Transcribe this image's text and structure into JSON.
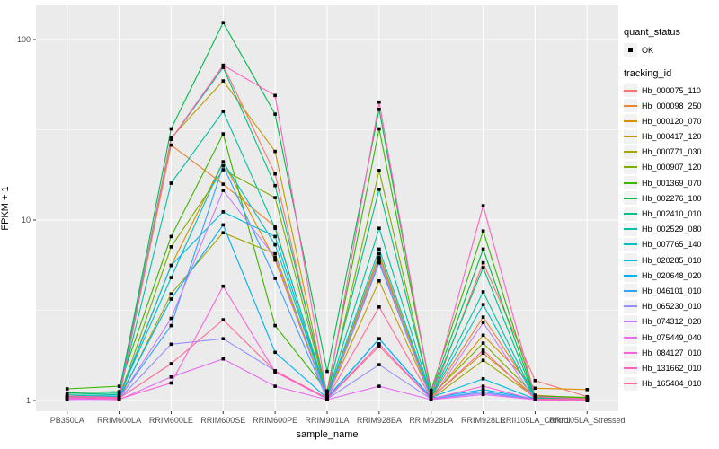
{
  "chart_data": {
    "type": "line",
    "xlabel": "sample_name",
    "ylabel": "FPKM + 1",
    "y_scale": "log10",
    "y_ticks": [
      1,
      10,
      100
    ],
    "ylim": [
      0.95,
      160
    ],
    "grid": "major-and-minor-horizontal, major-vertical, white on grey panel",
    "legend_position": "right",
    "point_label": "OK",
    "categories": [
      "PB350LA",
      "RRIM600LA",
      "RRIM600LE",
      "RRIM600SE",
      "RRIM600PE",
      "RRIM901LA",
      "RRIM928BA",
      "RRIM928LA",
      "RRIM928LE",
      "RRII105LA_Control",
      "RRII105LA_Stressed"
    ],
    "series": [
      {
        "name": "Hb_000075_110",
        "color": "#F8766D",
        "values": [
          1.05,
          1.02,
          28,
          72,
          18,
          1.02,
          2.0,
          1.02,
          5.8,
          1.29,
          1.05
        ]
      },
      {
        "name": "Hb_000098_250",
        "color": "#EA8331",
        "values": [
          1.03,
          1.05,
          26,
          15.8,
          9.2,
          1.03,
          6.2,
          1.05,
          2.9,
          1.07,
          1.03
        ]
      },
      {
        "name": "Hb_000120_070",
        "color": "#D89000",
        "values": [
          1.04,
          1.03,
          5.6,
          21,
          6.0,
          1.02,
          5.8,
          1.03,
          2.3,
          1.17,
          1.15
        ]
      },
      {
        "name": "Hb_000417_120",
        "color": "#C09B00",
        "values": [
          1.04,
          1.02,
          28.5,
          59,
          24,
          1.04,
          4.6,
          1.04,
          1.83,
          1.05,
          1.03
        ]
      },
      {
        "name": "Hb_000771_030",
        "color": "#A3A500",
        "values": [
          1.02,
          1.01,
          3.9,
          8.5,
          6.5,
          1.02,
          6.5,
          1.02,
          1.67,
          1.04,
          1.02
        ]
      },
      {
        "name": "Hb_000907_120",
        "color": "#7CAE00",
        "values": [
          1.05,
          1.04,
          7.1,
          19,
          13.3,
          1.05,
          18.8,
          1.06,
          2.08,
          1.06,
          1.03
        ]
      },
      {
        "name": "Hb_001369_070",
        "color": "#39B600",
        "values": [
          1.16,
          1.2,
          8.1,
          30,
          2.6,
          1.13,
          32,
          1.14,
          8.7,
          1.06,
          1.04
        ]
      },
      {
        "name": "Hb_002276_100",
        "color": "#00BB4E",
        "values": [
          1.1,
          1.12,
          32,
          124,
          38.6,
          1.45,
          41,
          1.1,
          6.9,
          1.04,
          1.02
        ]
      },
      {
        "name": "Hb_002410_010",
        "color": "#00C087",
        "values": [
          1.08,
          1.1,
          28,
          70,
          15.5,
          1.1,
          14.8,
          1.08,
          5.45,
          1.03,
          1.02
        ]
      },
      {
        "name": "Hb_002529_080",
        "color": "#00C1A3",
        "values": [
          1.06,
          1.08,
          16,
          40,
          9.0,
          1.06,
          9.0,
          1.06,
          4.0,
          1.03,
          1.02
        ]
      },
      {
        "name": "Hb_007765_140",
        "color": "#00BFC4",
        "values": [
          1.05,
          1.06,
          4.8,
          21,
          7.3,
          1.05,
          6.9,
          1.05,
          3.4,
          1.02,
          1.01
        ]
      },
      {
        "name": "Hb_020285_010",
        "color": "#00BAE0",
        "values": [
          1.04,
          1.05,
          5.6,
          11.1,
          8.1,
          1.04,
          2.2,
          1.04,
          1.32,
          1.02,
          1.01
        ]
      },
      {
        "name": "Hb_020648_020",
        "color": "#00B0F6",
        "values": [
          1.03,
          1.04,
          3.65,
          9.4,
          1.85,
          1.03,
          2.2,
          1.03,
          1.15,
          1.02,
          1.01
        ]
      },
      {
        "name": "Hb_046101_010",
        "color": "#35A2FF",
        "values": [
          1.02,
          1.03,
          2.6,
          20,
          4.75,
          1.02,
          5.8,
          1.02,
          1.12,
          1.01,
          1.0
        ]
      },
      {
        "name": "Hb_065230_010",
        "color": "#9590FF",
        "values": [
          1.02,
          1.02,
          2.05,
          2.2,
          1.46,
          1.02,
          1.58,
          1.02,
          1.1,
          1.01,
          1.0
        ]
      },
      {
        "name": "Hb_074312_020",
        "color": "#C77CFF",
        "values": [
          1.01,
          1.02,
          2.85,
          14.6,
          6.2,
          1.01,
          6.0,
          1.01,
          2.7,
          1.01,
          1.0
        ]
      },
      {
        "name": "Hb_075449_040",
        "color": "#E76BF3",
        "values": [
          1.02,
          1.01,
          1.35,
          1.7,
          1.2,
          1.01,
          1.2,
          1.01,
          1.08,
          1.01,
          1.0
        ]
      },
      {
        "name": "Hb_084127_010",
        "color": "#FA62DB",
        "values": [
          1.03,
          1.02,
          1.25,
          4.3,
          1.44,
          1.02,
          2.06,
          1.02,
          1.2,
          1.01,
          1.0
        ]
      },
      {
        "name": "Hb_131662_010",
        "color": "#FF62BC",
        "values": [
          1.06,
          1.04,
          28,
          72,
          49,
          1.06,
          45,
          1.07,
          12,
          1.05,
          1.02
        ]
      },
      {
        "name": "Hb_165404_010",
        "color": "#FF6A98",
        "values": [
          1.04,
          1.03,
          1.6,
          2.8,
          1.46,
          1.03,
          3.3,
          1.03,
          1.9,
          1.02,
          1.01
        ]
      }
    ],
    "legend": {
      "quant_status_title": "quant_status",
      "quant_status_items": [
        "OK"
      ],
      "tracking_title": "tracking_id"
    },
    "colors": {
      "panel_background": "#EBEBEB",
      "gridline": "#FFFFFF",
      "point": "#000000",
      "tick_label": "#4D4D4D",
      "legend_key_background": "#F2F2F2"
    }
  }
}
